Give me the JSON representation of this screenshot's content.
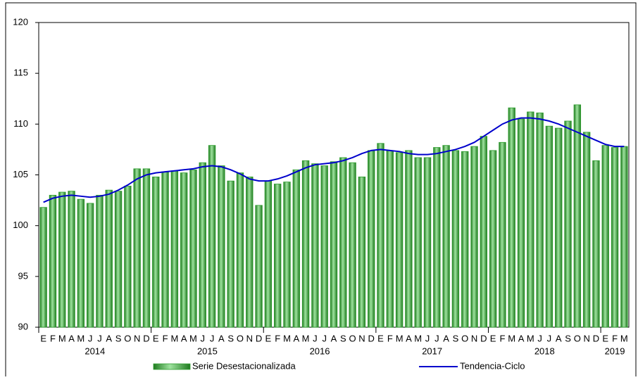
{
  "chart_data": {
    "type": "bar",
    "categories": [
      "E",
      "F",
      "M",
      "A",
      "M",
      "J",
      "J",
      "A",
      "S",
      "O",
      "N",
      "D",
      "E",
      "F",
      "M",
      "A",
      "M",
      "J",
      "J",
      "A",
      "S",
      "O",
      "N",
      "D",
      "E",
      "F",
      "M",
      "A",
      "M",
      "J",
      "J",
      "A",
      "S",
      "O",
      "N",
      "D",
      "E",
      "F",
      "M",
      "A",
      "M",
      "J",
      "J",
      "A",
      "S",
      "O",
      "N",
      "D",
      "E",
      "F",
      "M",
      "A",
      "M",
      "J",
      "J",
      "A",
      "S",
      "O",
      "N",
      "D",
      "E",
      "F",
      "M"
    ],
    "years": [
      "2014",
      "2015",
      "2016",
      "2017",
      "2018",
      "2019"
    ],
    "series": [
      {
        "name": "Serie Desestacionalizada",
        "type": "bar",
        "color": "#2e9e2e",
        "values": [
          101.8,
          103.0,
          103.3,
          103.4,
          102.6,
          102.2,
          103.0,
          103.5,
          103.4,
          103.9,
          105.6,
          105.6,
          104.8,
          105.3,
          105.4,
          105.2,
          105.5,
          106.2,
          107.9,
          105.9,
          104.4,
          105.2,
          104.8,
          102.0,
          104.4,
          104.1,
          104.3,
          105.5,
          106.4,
          106.1,
          105.9,
          106.3,
          106.7,
          106.2,
          104.8,
          107.4,
          108.1,
          107.4,
          107.2,
          107.4,
          106.7,
          106.7,
          107.7,
          107.9,
          107.4,
          107.3,
          107.8,
          108.8,
          107.4,
          108.2,
          111.6,
          110.5,
          111.2,
          111.1,
          109.8,
          109.6,
          110.3,
          111.9,
          109.2,
          106.4,
          107.9,
          107.7,
          107.8
        ]
      },
      {
        "name": "Tendencia-Ciclo",
        "type": "line",
        "color": "#0000cc",
        "values": [
          102.3,
          102.7,
          102.9,
          103.0,
          102.9,
          102.8,
          102.9,
          103.1,
          103.5,
          104.0,
          104.6,
          105.0,
          105.2,
          105.3,
          105.4,
          105.5,
          105.6,
          105.8,
          105.9,
          105.8,
          105.5,
          105.1,
          104.6,
          104.4,
          104.4,
          104.6,
          104.9,
          105.3,
          105.7,
          106.0,
          106.1,
          106.2,
          106.4,
          106.7,
          107.1,
          107.4,
          107.5,
          107.4,
          107.3,
          107.1,
          107.0,
          107.0,
          107.1,
          107.3,
          107.5,
          107.8,
          108.2,
          108.8,
          109.4,
          110.0,
          110.4,
          110.6,
          110.6,
          110.5,
          110.3,
          110.0,
          109.6,
          109.2,
          108.8,
          108.4,
          108.0,
          107.8,
          107.8
        ]
      }
    ],
    "ylim": [
      90,
      120
    ],
    "yticks": [
      90,
      95,
      100,
      105,
      110,
      115,
      120
    ],
    "grid": false
  }
}
